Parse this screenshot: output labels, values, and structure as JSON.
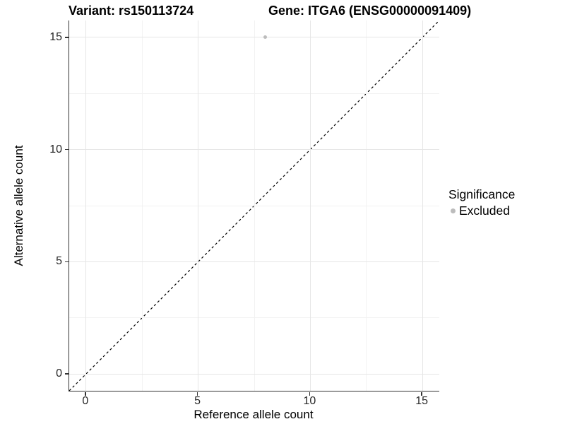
{
  "chart_data": {
    "type": "scatter",
    "title": "Variant: rs150113724    Gene: ITGA6 (ENSG00000091409)",
    "title_left": "Variant: rs150113724",
    "title_right": "Gene: ITGA6 (ENSG00000091409)",
    "xlabel": "Reference allele count",
    "ylabel": "Alternative allele count",
    "xlim": [
      -0.75,
      15.75
    ],
    "ylim": [
      -0.75,
      15.75
    ],
    "x_ticks": [
      0,
      5,
      10,
      15
    ],
    "y_ticks": [
      0,
      5,
      10,
      15
    ],
    "x_minor_ticks": [
      2.5,
      7.5,
      12.5
    ],
    "y_minor_ticks": [
      2.5,
      7.5,
      12.5
    ],
    "grid": "major+minor",
    "series": [
      {
        "name": "Excluded",
        "color": "#bcbcbc",
        "points": [
          {
            "x": 8,
            "y": 15
          }
        ]
      }
    ],
    "reference_line": {
      "type": "identity",
      "slope": 1,
      "intercept": 0,
      "linetype": "dashed",
      "color": "#000000"
    },
    "legend": {
      "title": "Significance",
      "position": "right",
      "entries": [
        {
          "label": "Excluded",
          "color": "#bcbcbc",
          "marker": "circle"
        }
      ]
    }
  },
  "colors": {
    "background": "#ffffff",
    "axis_line": "#333333",
    "tick_label": "#262626",
    "grid_major": "#e6e6e6",
    "grid_minor": "#f2f2f2"
  }
}
